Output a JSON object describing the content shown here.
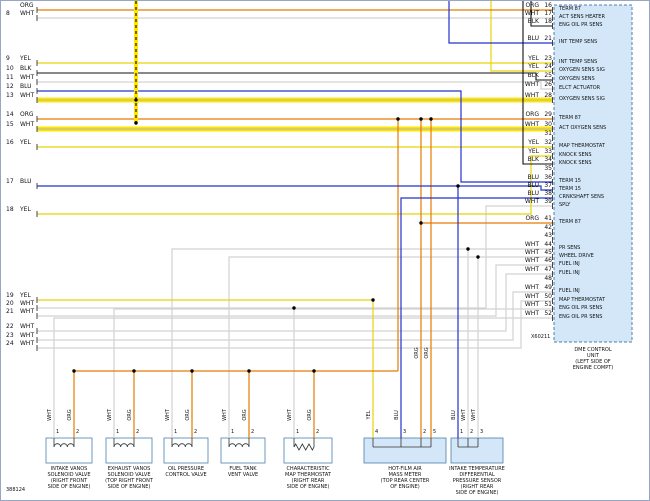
{
  "doc_number": "388124",
  "colors": {
    "ORG": "#e67a00",
    "YEL": "#e6d405",
    "BLU": "#2233cc",
    "BLK": "#111111",
    "WHT": "#d2d2d2",
    "highlight": "#ffe600",
    "box_fill": "#d3e7f8",
    "box_stroke": "#4c7fae"
  },
  "left_pins": [
    {
      "num": "",
      "color": "ORG"
    },
    {
      "num": "8",
      "color": "WHT"
    },
    {
      "num": "9",
      "color": "YEL"
    },
    {
      "num": "10",
      "color": "BLK"
    },
    {
      "num": "11",
      "color": "WHT"
    },
    {
      "num": "12",
      "color": "BLU"
    },
    {
      "num": "13",
      "color": "WHT"
    },
    {
      "num": "14",
      "color": "ORG"
    },
    {
      "num": "15",
      "color": "WHT"
    },
    {
      "num": "16",
      "color": "YEL"
    },
    {
      "num": "17",
      "color": "BLU"
    },
    {
      "num": "18",
      "color": "YEL"
    },
    {
      "num": "19",
      "color": "YEL"
    },
    {
      "num": "20",
      "color": "WHT"
    },
    {
      "num": "21",
      "color": "WHT"
    },
    {
      "num": "22",
      "color": "WHT"
    },
    {
      "num": "23",
      "color": "WHT"
    },
    {
      "num": "24",
      "color": "WHT"
    }
  ],
  "dme": {
    "connector": "X60211",
    "caption": [
      "DME CONTROL",
      "UNIT",
      "(LEFT SIDE OF",
      "ENGINE COMPT)"
    ],
    "pins": [
      {
        "num": "16",
        "color": "ORG",
        "label": "TERM 87"
      },
      {
        "num": "17",
        "color": "WHT",
        "label": "ACT SENS HEATER"
      },
      {
        "num": "18",
        "color": "BLK",
        "label": "ENG OIL PR SENS"
      },
      {
        "num": "21",
        "color": "BLU",
        "label": "INT TEMP SENS"
      },
      {
        "num": "23",
        "color": "YEL",
        "label": "INT TEMP SENS"
      },
      {
        "num": "24",
        "color": "YEL",
        "label": "OXYGEN SENS SIG"
      },
      {
        "num": "25",
        "color": "BLK",
        "label": "OXYGEN SENS"
      },
      {
        "num": "26",
        "color": "WHT",
        "label": "ELCT ACTUATOR"
      },
      {
        "num": "28",
        "color": "WHT",
        "label": "OXYGEN SENS SIG",
        "hl": true
      },
      {
        "num": "29",
        "color": "ORG",
        "label": "TERM 87"
      },
      {
        "num": "30",
        "color": "WHT",
        "label": "ACT OXYGEN SENS",
        "hl": true
      },
      {
        "num": "31",
        "color": "",
        "label": ""
      },
      {
        "num": "32",
        "color": "YEL",
        "label": "MAP THERMOSTAT"
      },
      {
        "num": "33",
        "color": "YEL",
        "label": "KNOCK SENS"
      },
      {
        "num": "34",
        "color": "BLK",
        "label": "KNOCK SENS"
      },
      {
        "num": "35",
        "color": "",
        "label": ""
      },
      {
        "num": "36",
        "color": "BLU",
        "label": "TERM 15"
      },
      {
        "num": "37",
        "color": "BLU",
        "label": "TERM 15"
      },
      {
        "num": "38",
        "color": "BLU",
        "label": "CRNKSHAFT SENS"
      },
      {
        "num": "39",
        "color": "WHT",
        "label": "SPLY"
      },
      {
        "num": "41",
        "color": "ORG",
        "label": "TERM 87"
      },
      {
        "num": "42",
        "color": "",
        "label": ""
      },
      {
        "num": "43",
        "color": "",
        "label": ""
      },
      {
        "num": "44",
        "color": "WHT",
        "label": "PR SENS"
      },
      {
        "num": "45",
        "color": "WHT",
        "label": "WHEEL DRIVE"
      },
      {
        "num": "46",
        "color": "WHT",
        "label": "FUEL INJ"
      },
      {
        "num": "47",
        "color": "WHT",
        "label": "FUEL INJ"
      },
      {
        "num": "48",
        "color": "",
        "label": ""
      },
      {
        "num": "49",
        "color": "WHT",
        "label": "FUEL INJ"
      },
      {
        "num": "50",
        "color": "WHT",
        "label": "MAP THERMOSTAT"
      },
      {
        "num": "51",
        "color": "WHT",
        "label": "ENG OIL PR SENS"
      },
      {
        "num": "52",
        "color": "WHT",
        "label": "ENG OIL PR SENS"
      }
    ]
  },
  "components": [
    {
      "name": "intake-vanos-solenoid-valve",
      "caption": [
        "INTAKE VANOS",
        "SOLENOID VALVE",
        "(RIGHT FRONT",
        "SIDE OF ENGINE)"
      ],
      "pins": [
        {
          "num": "1",
          "color": "WHT"
        },
        {
          "num": "2",
          "color": "ORG"
        }
      ]
    },
    {
      "name": "exhaust-vanos-solenoid-valve",
      "caption": [
        "EXHAUST VANOS",
        "SOLENOID VALVE",
        "(TOP RIGHT FRONT",
        "SIDE OF ENGINE)"
      ],
      "pins": [
        {
          "num": "1",
          "color": "WHT"
        },
        {
          "num": "2",
          "color": "ORG"
        }
      ]
    },
    {
      "name": "oil-pressure-control-valve",
      "caption": [
        "OIL PRESSURE",
        "CONTROL VALVE"
      ],
      "pins": [
        {
          "num": "1",
          "color": "WHT"
        },
        {
          "num": "2",
          "color": "ORG"
        }
      ]
    },
    {
      "name": "fuel-tank-vent-valve",
      "caption": [
        "FUEL TANK",
        "VENT VALVE"
      ],
      "pins": [
        {
          "num": "1",
          "color": "WHT"
        },
        {
          "num": "2",
          "color": "ORG"
        }
      ]
    },
    {
      "name": "characteristic-map-thermostat",
      "caption": [
        "CHARACTERISTIC",
        "MAP THERMOSTAT",
        "(RIGHT REAR",
        "SIDE OF ENGINE)"
      ],
      "pins": [
        {
          "num": "1",
          "color": "WHT"
        },
        {
          "num": "2",
          "color": "ORG"
        }
      ]
    },
    {
      "name": "hot-film-air-mass-meter",
      "caption": [
        "HOT-FILM AIR",
        "MASS METER",
        "(TOP REAR CENTER",
        "OF ENGINE)"
      ],
      "pins": [
        {
          "num": "4",
          "color": "YEL"
        },
        {
          "num": "3",
          "color": "BLU"
        },
        {
          "num": "2",
          "color": "ORG"
        },
        {
          "num": "5",
          "color": "ORG"
        }
      ]
    },
    {
      "name": "intake-temp-diff-pressure-sensor",
      "caption": [
        "INTAKE TEMPERATURE",
        "DIFFERENTIAL",
        "PRESSURE SENSOR",
        "(RIGHT REAR",
        "SIDE OF ENGINE)"
      ],
      "pins": [
        {
          "num": "1",
          "color": "BLU"
        },
        {
          "num": "2",
          "color": "WHT"
        },
        {
          "num": "3",
          "color": "WHT"
        }
      ]
    }
  ]
}
